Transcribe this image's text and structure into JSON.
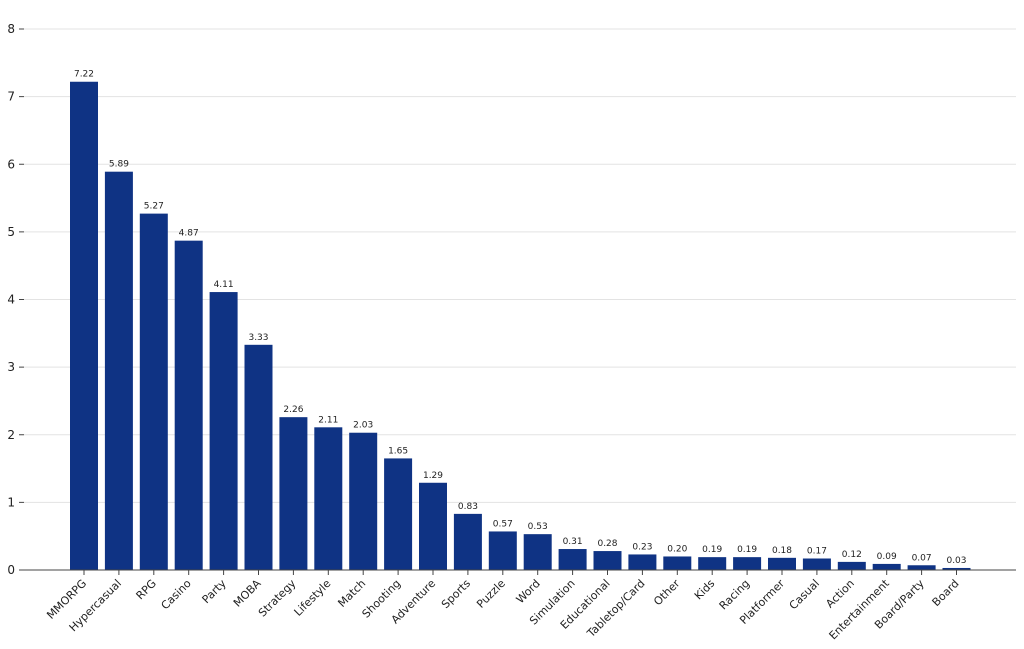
{
  "chart_data": {
    "type": "bar",
    "title": "",
    "xlabel": "",
    "ylabel": "",
    "ylim": [
      0,
      8
    ],
    "yticks": [
      0,
      1,
      2,
      3,
      4,
      5,
      6,
      7,
      8
    ],
    "grid": "horizontal",
    "legend": "none",
    "bar_color": "#0f3384",
    "categories": [
      "MMORPG",
      "Hypercasual",
      "RPG",
      "Casino",
      "Party",
      "MOBA",
      "Strategy",
      "Lifestyle",
      "Match",
      "Shooting",
      "Adventure",
      "Sports",
      "Puzzle",
      "Word",
      "Simulation",
      "Educational",
      "Tabletop/Card",
      "Other",
      "Kids",
      "Racing",
      "Platformer",
      "Casual",
      "Action",
      "Entertainment",
      "Board/Party",
      "Board"
    ],
    "values": [
      7.22,
      5.89,
      5.27,
      4.87,
      4.11,
      3.33,
      2.26,
      2.11,
      2.03,
      1.65,
      1.29,
      0.83,
      0.57,
      0.53,
      0.31,
      0.28,
      0.23,
      0.2,
      0.19,
      0.19,
      0.18,
      0.17,
      0.12,
      0.09,
      0.07,
      0.03
    ],
    "value_labels": [
      "7.22",
      "5.89",
      "5.27",
      "4.87",
      "4.11",
      "3.33",
      "2.26",
      "2.11",
      "2.03",
      "1.65",
      "1.29",
      "0.83",
      "0.57",
      "0.53",
      "0.31",
      "0.28",
      "0.23",
      "0.20",
      "0.19",
      "0.19",
      "0.18",
      "0.17",
      "0.12",
      "0.09",
      "0.07",
      "0.03"
    ]
  }
}
